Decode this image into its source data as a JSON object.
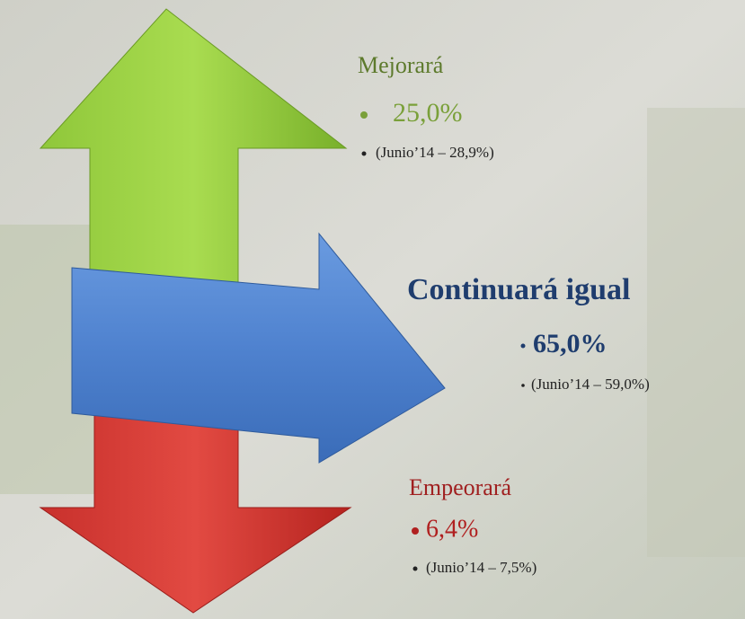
{
  "items": [
    {
      "label": "Mejorará",
      "value": "25,0%",
      "previous": "(Junio’14 – 28,9%)"
    },
    {
      "label": "Continuará igual",
      "value": "65,0%",
      "previous": "(Junio’14 – 59,0%)"
    },
    {
      "label": "Empeorará",
      "value": "6,4%",
      "previous": "(Junio’14 – 7,5%)"
    }
  ]
}
